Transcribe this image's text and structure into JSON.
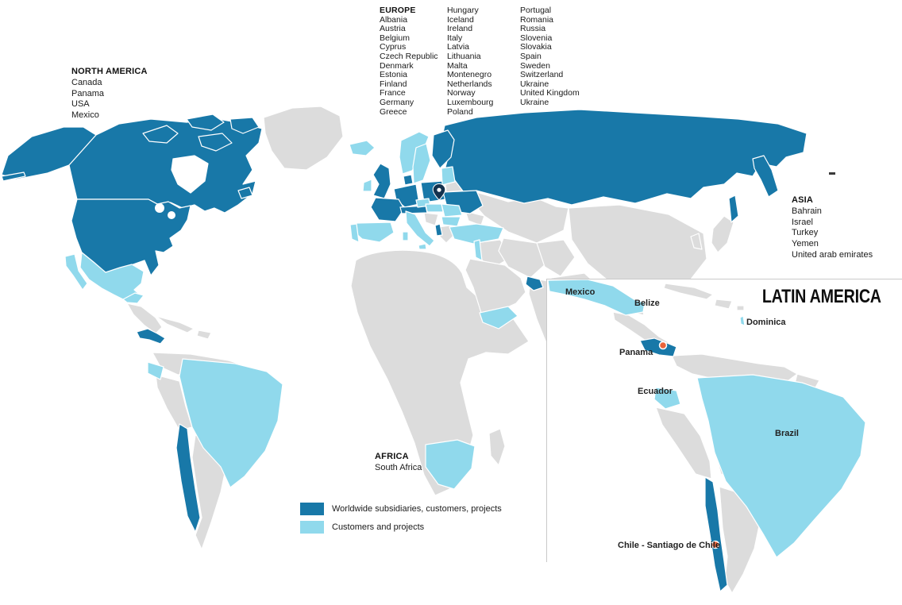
{
  "regions": {
    "north_america": {
      "title": "NORTH AMERICA",
      "countries": [
        "Canada",
        "Panama",
        "USA",
        "Mexico"
      ]
    },
    "europe": {
      "title": "EUROPE",
      "col1": [
        "Albania",
        "Austria",
        "Belgium",
        "Cyprus",
        "Czech Republic",
        "Denmark",
        "Estonia",
        "Finland",
        "France",
        "Germany",
        "Greece"
      ],
      "col2": [
        "Hungary",
        "Iceland",
        "Ireland",
        "Italy",
        "Latvia",
        "Lithuania",
        "Malta",
        "Montenegro",
        "Netherlands",
        "Norway",
        "Luxembourg",
        "Poland"
      ],
      "col3": [
        "Portugal",
        "Romania",
        "Russia",
        "Slovenia",
        "Slovakia",
        "Spain",
        "Sweden",
        "Switzerland",
        "Ukraine",
        "United Kingdom",
        "Ukraine"
      ]
    },
    "asia": {
      "title": "ASIA",
      "countries": [
        "Bahrain",
        "Israel",
        "Turkey",
        "Yemen",
        "United arab emirates"
      ]
    },
    "africa": {
      "title": "AFRICA",
      "countries": [
        "South Africa"
      ]
    }
  },
  "legend": {
    "items": [
      {
        "label": "Worldwide subsidiaries, customers, projects",
        "color": "#1878a8"
      },
      {
        "label": "Customers and projects",
        "color": "#90d9ec"
      }
    ]
  },
  "inset": {
    "title": "LATIN AMERICA",
    "labels": {
      "mexico": "Mexico",
      "belize": "Belize",
      "dominica": "Dominica",
      "panama": "Panama",
      "ecuador": "Ecuador",
      "brazil": "Brazil",
      "chile": "Chile - Santiago de Chile"
    }
  },
  "map": {
    "colors": {
      "worldwide_subsidiaries": "#1878a8",
      "customers_projects": "#90d9ec",
      "other_land": "#dcdcdc",
      "office_marker": "#e8633a",
      "headquarters_pin": "#13324e"
    }
  }
}
